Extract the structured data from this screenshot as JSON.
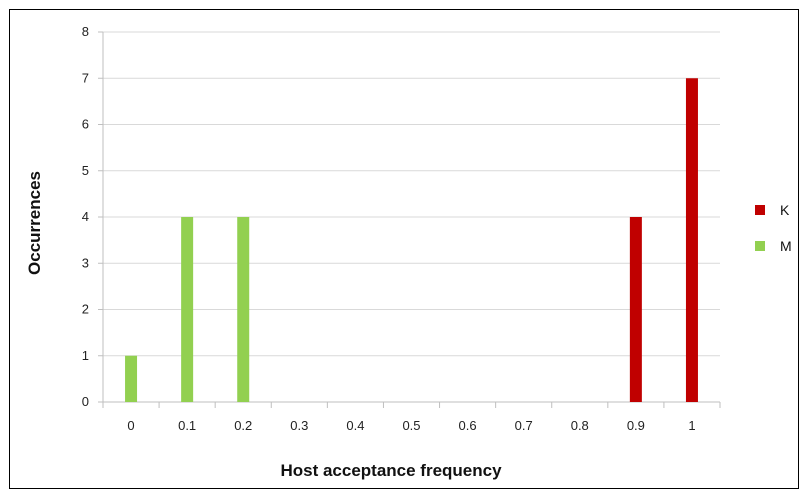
{
  "chart_data": {
    "type": "bar",
    "categories": [
      "0",
      "0.1",
      "0.2",
      "0.3",
      "0.4",
      "0.5",
      "0.6",
      "0.7",
      "0.8",
      "0.9",
      "1"
    ],
    "series": [
      {
        "name": "K",
        "color": "#c00000",
        "values": [
          0,
          0,
          0,
          0,
          0,
          0,
          0,
          0,
          0,
          4,
          7
        ]
      },
      {
        "name": "M",
        "color": "#92d050",
        "values": [
          1,
          4,
          4,
          0,
          0,
          0,
          0,
          0,
          0,
          0,
          0
        ]
      }
    ],
    "xlabel": "Host acceptance frequency",
    "ylabel": "Occurrences",
    "ylim": [
      0,
      8
    ],
    "yticks": [
      "0",
      "1",
      "2",
      "3",
      "4",
      "5",
      "6",
      "7",
      "8"
    ],
    "grid": true,
    "legend_position": "right"
  }
}
